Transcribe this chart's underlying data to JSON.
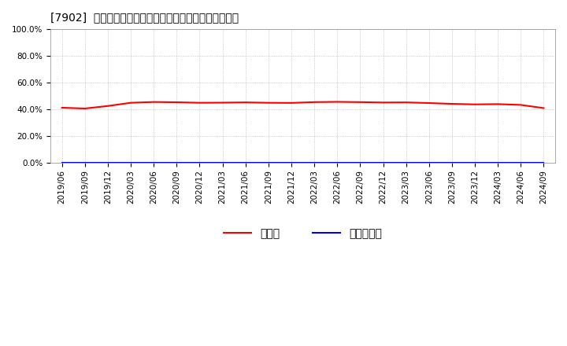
{
  "title": "[7902]  現預金、有利子負債の総資産に対する比率の推移",
  "x_labels": [
    "2019/06",
    "2019/09",
    "2019/12",
    "2020/03",
    "2020/06",
    "2020/09",
    "2020/12",
    "2021/03",
    "2021/06",
    "2021/09",
    "2021/12",
    "2022/03",
    "2022/06",
    "2022/09",
    "2022/12",
    "2023/03",
    "2023/06",
    "2023/09",
    "2023/12",
    "2024/03",
    "2024/06",
    "2024/09"
  ],
  "cash_values": [
    0.411,
    0.405,
    0.424,
    0.448,
    0.454,
    0.452,
    0.448,
    0.449,
    0.451,
    0.448,
    0.447,
    0.453,
    0.455,
    0.453,
    0.45,
    0.451,
    0.446,
    0.44,
    0.436,
    0.438,
    0.432,
    0.408
  ],
  "debt_values": [
    0.0,
    0.0,
    0.0,
    0.0,
    0.0,
    0.0,
    0.0,
    0.0,
    0.0,
    0.0,
    0.0,
    0.0,
    0.0,
    0.0,
    0.0,
    0.0,
    0.0,
    0.0,
    0.0,
    0.0,
    0.0,
    0.0
  ],
  "cash_color": "#ff0000",
  "debt_color": "#0000ff",
  "cash_label": "現預金",
  "debt_label": "有利子負債",
  "ylim": [
    0.0,
    1.0
  ],
  "yticks": [
    0.0,
    0.2,
    0.4,
    0.6,
    0.8,
    1.0
  ],
  "background_color": "#ffffff",
  "plot_bg_color": "#ffffff",
  "grid_color": "#aaaaaa",
  "title_fontsize": 11,
  "axis_fontsize": 7.5,
  "legend_fontsize": 9
}
